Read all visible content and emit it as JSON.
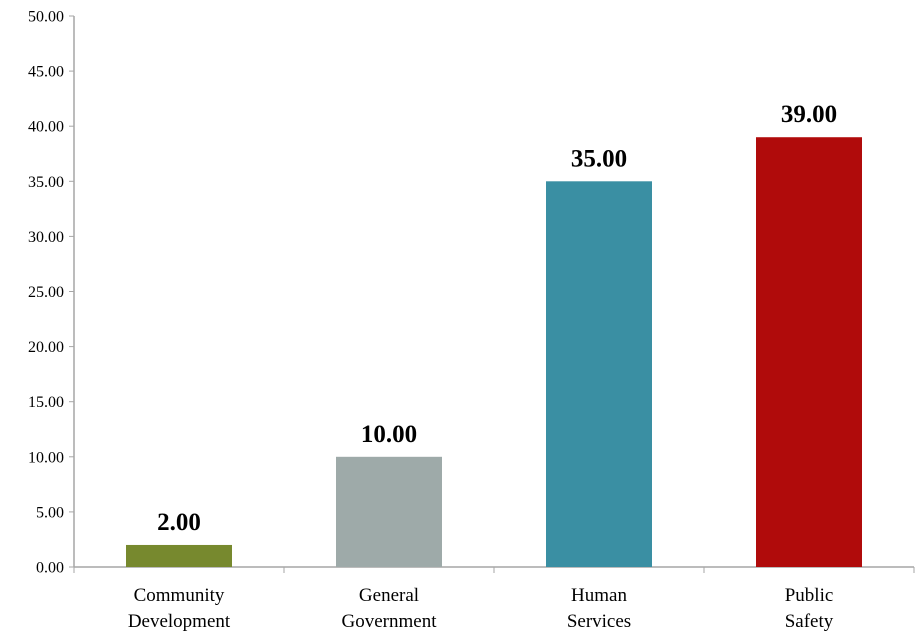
{
  "chart_data": {
    "type": "bar",
    "categories": [
      [
        "Community",
        "Development"
      ],
      [
        "General",
        "Government"
      ],
      [
        "Human",
        "Services"
      ],
      [
        "Public",
        "Safety"
      ]
    ],
    "values": [
      2.0,
      10.0,
      35.0,
      39.0
    ],
    "data_labels": [
      "2.00",
      "10.00",
      "35.00",
      "39.00"
    ],
    "colors": [
      "#77892e",
      "#9eaaa9",
      "#3a8fa3",
      "#b00b0b"
    ],
    "title": "",
    "xlabel": "",
    "ylabel": "",
    "ylim": [
      0,
      50
    ],
    "y_ticks": [
      "0.00",
      "5.00",
      "10.00",
      "15.00",
      "20.00",
      "25.00",
      "30.00",
      "35.00",
      "40.00",
      "45.00",
      "50.00"
    ],
    "grid": false,
    "legend": "none"
  }
}
